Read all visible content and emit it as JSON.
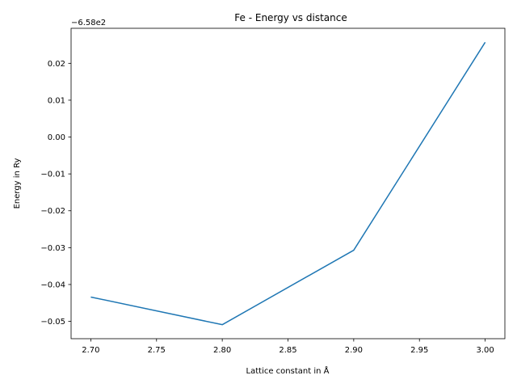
{
  "chart_data": {
    "type": "line",
    "title": "Fe - Energy vs distance",
    "xlabel": "Lattice constant in Å",
    "ylabel": "Energy in Ry",
    "y_offset_label": "−6.58e2",
    "x": [
      2.7,
      2.8,
      2.9,
      3.0
    ],
    "series": [
      {
        "values": [
          -0.0434,
          -0.0509,
          -0.0307,
          0.0257
        ],
        "color": "#1f77b4"
      }
    ],
    "xlim": [
      2.685,
      3.015
    ],
    "ylim": [
      -0.0547,
      0.0295
    ],
    "xticks": [
      2.7,
      2.75,
      2.8,
      2.85,
      2.9,
      2.95,
      3.0
    ],
    "xtick_labels": [
      "2.70",
      "2.75",
      "2.80",
      "2.85",
      "2.90",
      "2.95",
      "3.00"
    ],
    "yticks": [
      -0.05,
      -0.04,
      -0.03,
      -0.02,
      -0.01,
      0.0,
      0.01,
      0.02
    ],
    "ytick_labels": [
      "−0.05",
      "−0.04",
      "−0.03",
      "−0.02",
      "−0.01",
      "0.00",
      "0.01",
      "0.02"
    ],
    "grid": false,
    "legend": "none"
  }
}
